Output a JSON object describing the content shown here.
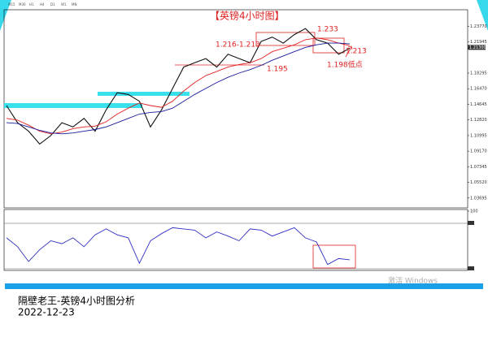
{
  "toolbar": [
    "M15",
    "M30",
    "H1",
    "H4",
    "D1",
    "W1",
    "MN"
  ],
  "chart_data": [
    {
      "type": "line",
      "title": "【英镑4小时图】",
      "categories": [
        null,
        null,
        null,
        null,
        null,
        null,
        null,
        null,
        null,
        null,
        null,
        null,
        null,
        null,
        null,
        null,
        null,
        null,
        null,
        null,
        null,
        null,
        null,
        null,
        null,
        null,
        null,
        null,
        null,
        null,
        null,
        null
      ],
      "series": [
        {
          "color": "#111111",
          "values": [
            1.145,
            1.125,
            1.115,
            1.1,
            1.11,
            1.125,
            1.12,
            1.13,
            1.115,
            1.14,
            1.16,
            1.158,
            1.15,
            1.12,
            1.14,
            1.165,
            1.19,
            1.195,
            1.2,
            1.19,
            1.205,
            1.2,
            1.195,
            1.22,
            1.225,
            1.218,
            1.228,
            1.235,
            1.222,
            1.218,
            1.205,
            1.212
          ]
        },
        {
          "color": "#e02020",
          "values": [
            1.13,
            1.128,
            1.122,
            1.115,
            1.112,
            1.114,
            1.118,
            1.12,
            1.121,
            1.126,
            1.135,
            1.142,
            1.148,
            1.145,
            1.143,
            1.15,
            1.162,
            1.172,
            1.18,
            1.185,
            1.19,
            1.193,
            1.195,
            1.2,
            1.208,
            1.212,
            1.216,
            1.222,
            1.224,
            1.222,
            1.218,
            1.215
          ]
        },
        {
          "color": "#1a1a9a",
          "values": [
            1.125,
            1.124,
            1.12,
            1.116,
            1.113,
            1.112,
            1.113,
            1.115,
            1.117,
            1.12,
            1.125,
            1.13,
            1.135,
            1.137,
            1.138,
            1.142,
            1.15,
            1.158,
            1.165,
            1.172,
            1.178,
            1.183,
            1.187,
            1.192,
            1.198,
            1.203,
            1.208,
            1.213,
            1.216,
            1.218,
            1.218,
            1.217
          ]
        }
      ],
      "ylim": [
        1.0254,
        1.257
      ],
      "yticks": [
        {
          "value": 1.2377,
          "label": "1.23770"
        },
        {
          "value": 1.21945,
          "label": "1.21945"
        },
        {
          "value": 1.18295,
          "label": "1.18295"
        },
        {
          "value": 1.1647,
          "label": "1.16470"
        },
        {
          "value": 1.14645,
          "label": "1.14645"
        },
        {
          "value": 1.1282,
          "label": "1.12820"
        },
        {
          "value": 1.10995,
          "label": "1.10995"
        },
        {
          "value": 1.0917,
          "label": "1.09170"
        },
        {
          "value": 1.07345,
          "label": "1.07345"
        },
        {
          "value": 1.0552,
          "label": "1.05520"
        },
        {
          "value": 1.03695,
          "label": "1.03695"
        }
      ],
      "current_price": {
        "value": 1.213,
        "label": "1.21300"
      },
      "annotations": [
        "1.233",
        "1.216-1.213",
        "1.195",
        "1.213",
        "1.198低点"
      ],
      "annotation_color": "#e02020"
    },
    {
      "type": "line",
      "categories": [
        null,
        null,
        null,
        null,
        null,
        null,
        null,
        null,
        null,
        null,
        null,
        null,
        null,
        null,
        null,
        null,
        null,
        null,
        null,
        null,
        null,
        null,
        null,
        null,
        null,
        null,
        null,
        null,
        null,
        null,
        null,
        null
      ],
      "series": [
        {
          "color": "#3030c0",
          "values": [
            55,
            40,
            15,
            35,
            50,
            45,
            55,
            40,
            60,
            70,
            60,
            55,
            12,
            50,
            62,
            72,
            70,
            68,
            55,
            65,
            58,
            50,
            70,
            68,
            58,
            65,
            72,
            55,
            48,
            10,
            20,
            18
          ]
        }
      ],
      "ylim": [
        0,
        100
      ],
      "yticks": [
        100
      ]
    }
  ],
  "watermark": "激活 Windows",
  "footer": {
    "title": "隔壁老王-英镑4小时图分析",
    "date": "2022-12-23"
  }
}
